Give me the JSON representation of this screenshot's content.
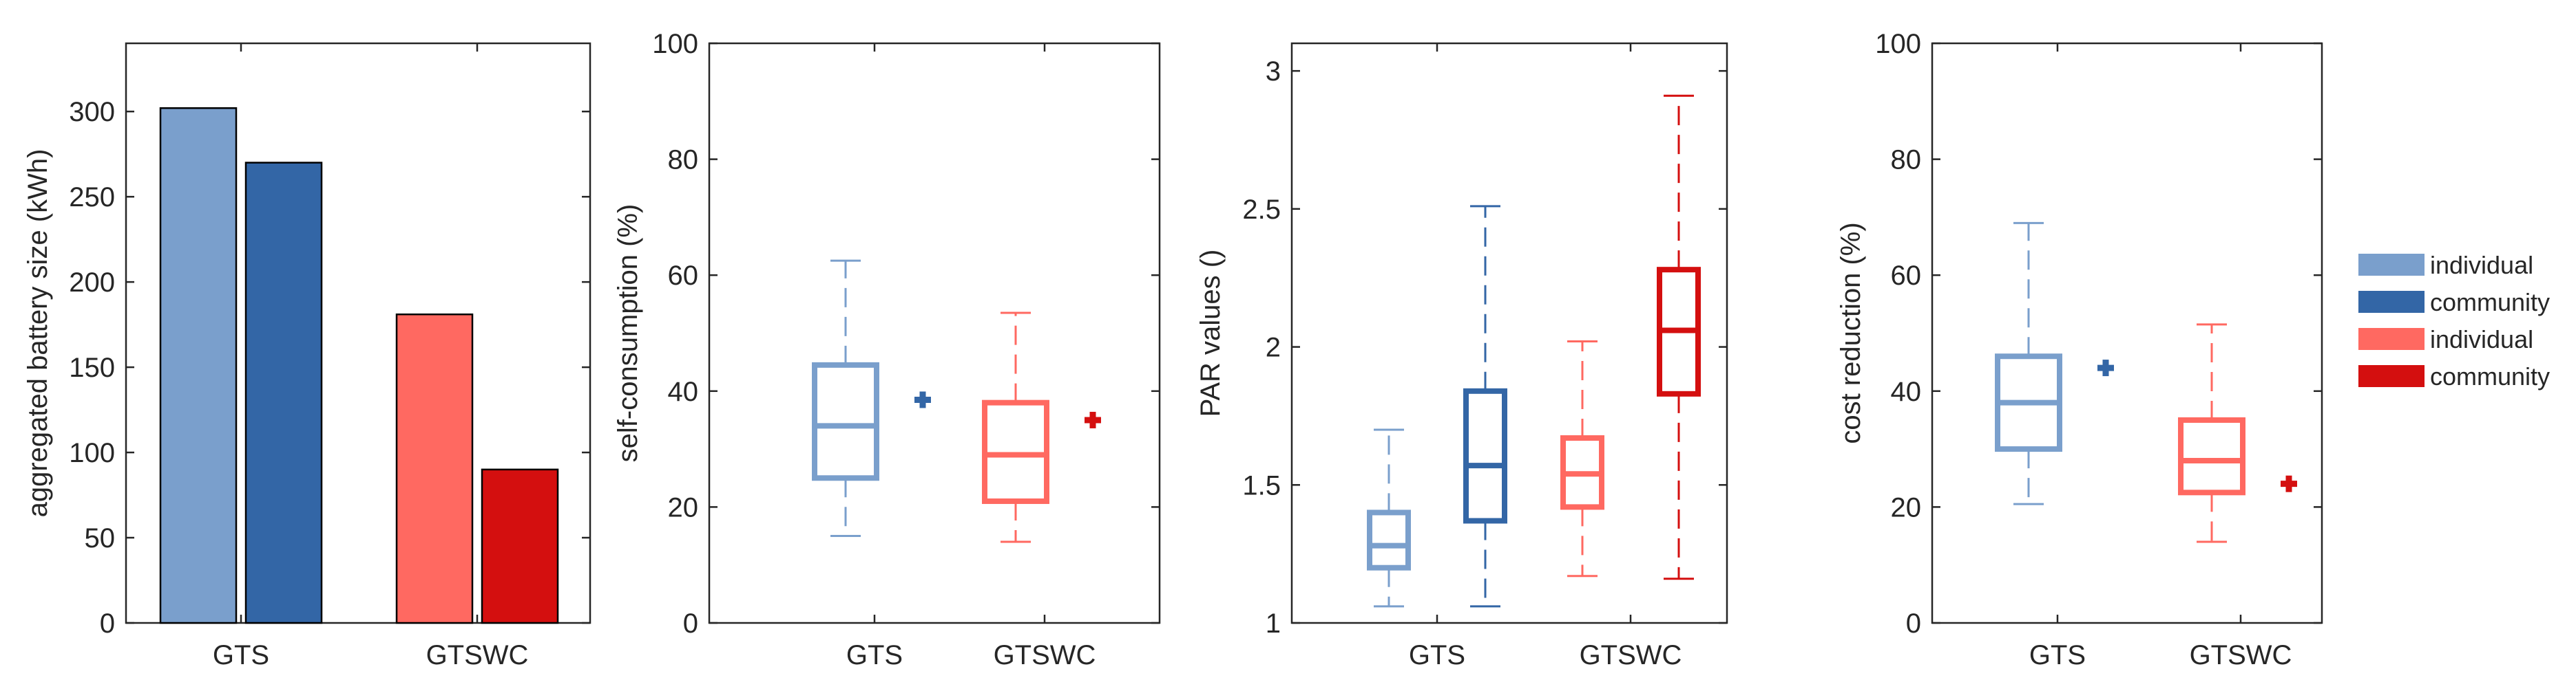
{
  "colors": {
    "gts_individual": "#7a9fcc",
    "gts_community": "#3366a6",
    "gtswc_individual": "#ff6961",
    "gtswc_community": "#d40f0f",
    "axis": "#262626"
  },
  "legend": {
    "entries": [
      {
        "label": "individual",
        "color_key": "gts_individual"
      },
      {
        "label": "community",
        "color_key": "gts_community"
      },
      {
        "label": "individual",
        "color_key": "gtswc_individual"
      },
      {
        "label": "community",
        "color_key": "gtswc_community"
      }
    ]
  },
  "chart_data": [
    {
      "type": "bar",
      "ylabel": "aggregated battery size (kWh)",
      "categories": [
        "GTS",
        "GTSWC"
      ],
      "ylim": [
        0,
        340
      ],
      "yticks": [
        0,
        50,
        100,
        150,
        200,
        250,
        300
      ],
      "series": [
        {
          "name": "GTS individual",
          "category": "GTS",
          "value": 302,
          "color_key": "gts_individual"
        },
        {
          "name": "GTS community",
          "category": "GTS",
          "value": 270,
          "color_key": "gts_community"
        },
        {
          "name": "GTSWC individual",
          "category": "GTSWC",
          "value": 181,
          "color_key": "gtswc_individual"
        },
        {
          "name": "GTSWC community",
          "category": "GTSWC",
          "value": 90,
          "color_key": "gtswc_community"
        }
      ]
    },
    {
      "type": "box",
      "ylabel": "self-consumption (%)",
      "categories": [
        "GTS",
        "GTSWC"
      ],
      "ylim": [
        0,
        100
      ],
      "yticks": [
        0,
        20,
        40,
        60,
        80,
        100
      ],
      "boxes": [
        {
          "name": "GTS individual",
          "category": "GTS",
          "color_key": "gts_individual",
          "min": 15,
          "q1": 25,
          "median": 34,
          "q3": 44.5,
          "max": 62.5
        },
        {
          "name": "GTSWC individual",
          "category": "GTSWC",
          "color_key": "gtswc_individual",
          "min": 14,
          "q1": 21,
          "median": 29,
          "q3": 38,
          "max": 53.5
        }
      ],
      "markers": [
        {
          "name": "GTS community",
          "category": "GTS",
          "color_key": "gts_community",
          "value": 38.5
        },
        {
          "name": "GTSWC community",
          "category": "GTSWC",
          "color_key": "gtswc_community",
          "value": 35
        }
      ]
    },
    {
      "type": "box",
      "ylabel": "PAR values ()",
      "categories": [
        "GTS",
        "GTSWC"
      ],
      "ylim": [
        1,
        3.1
      ],
      "yticks": [
        1,
        1.5,
        2,
        2.5,
        3
      ],
      "boxes": [
        {
          "name": "GTS individual",
          "category": "GTS",
          "color_key": "gts_individual",
          "min": 1.06,
          "q1": 1.2,
          "median": 1.28,
          "q3": 1.4,
          "max": 1.7
        },
        {
          "name": "GTS community",
          "category": "GTS",
          "color_key": "gts_community",
          "min": 1.06,
          "q1": 1.37,
          "median": 1.57,
          "q3": 1.84,
          "max": 2.51
        },
        {
          "name": "GTSWC individual",
          "category": "GTSWC",
          "color_key": "gtswc_individual",
          "min": 1.17,
          "q1": 1.42,
          "median": 1.54,
          "q3": 1.67,
          "max": 2.02
        },
        {
          "name": "GTSWC community",
          "category": "GTSWC",
          "color_key": "gtswc_community",
          "min": 1.16,
          "q1": 1.83,
          "median": 2.06,
          "q3": 2.28,
          "max": 2.91
        }
      ],
      "markers": []
    },
    {
      "type": "box",
      "ylabel": "cost reduction (%)",
      "categories": [
        "GTS",
        "GTSWC"
      ],
      "ylim": [
        0,
        100
      ],
      "yticks": [
        0,
        20,
        40,
        60,
        80,
        100
      ],
      "boxes": [
        {
          "name": "GTS individual",
          "category": "GTS",
          "color_key": "gts_individual",
          "min": 20.5,
          "q1": 30,
          "median": 38,
          "q3": 46,
          "max": 69
        },
        {
          "name": "GTSWC individual",
          "category": "GTSWC",
          "color_key": "gtswc_individual",
          "min": 14,
          "q1": 22.5,
          "median": 28,
          "q3": 35,
          "max": 51.5
        }
      ],
      "markers": [
        {
          "name": "GTS community",
          "category": "GTS",
          "color_key": "gts_community",
          "value": 44
        },
        {
          "name": "GTSWC community",
          "category": "GTSWC",
          "color_key": "gtswc_community",
          "value": 24
        }
      ]
    }
  ]
}
